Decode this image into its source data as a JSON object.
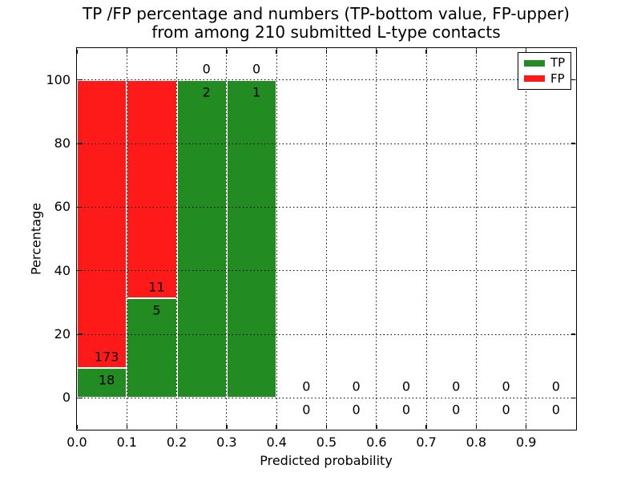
{
  "figure": {
    "title_line1": "TP /FP percentage and numbers (TP-bottom value, FP-upper)",
    "title_line2": "from among 210 submitted L-type contacts",
    "xlabel": "Predicted probability",
    "ylabel": "Percentage"
  },
  "legend": {
    "items": [
      {
        "label": "TP",
        "color": "#228b22"
      },
      {
        "label": "FP",
        "color": "#ff1a1a"
      }
    ]
  },
  "chart_data": {
    "type": "bar",
    "stacked": true,
    "title": "TP /FP percentage and numbers (TP-bottom value, FP-upper) from among 210 submitted L-type contacts",
    "xlabel": "Predicted probability",
    "ylabel": "Percentage",
    "xlim": [
      0.0,
      1.0
    ],
    "ylim": [
      -10,
      110
    ],
    "grid": true,
    "grid_style": "dotted",
    "legend_position": "upper right",
    "total_contacts": 210,
    "bin_edges": [
      0.0,
      0.1,
      0.2,
      0.3,
      0.4,
      0.5,
      0.6,
      0.7,
      0.8,
      0.9,
      1.0
    ],
    "categories": [
      "0.0-0.1",
      "0.1-0.2",
      "0.2-0.3",
      "0.3-0.4",
      "0.4-0.5",
      "0.5-0.6",
      "0.6-0.7",
      "0.7-0.8",
      "0.8-0.9",
      "0.9-1.0"
    ],
    "x_ticks": [
      "0.0",
      "0.1",
      "0.2",
      "0.3",
      "0.4",
      "0.5",
      "0.6",
      "0.7",
      "0.8",
      "0.9"
    ],
    "y_ticks": [
      0,
      20,
      40,
      60,
      80,
      100
    ],
    "series": [
      {
        "name": "TP",
        "color": "#228b22",
        "counts": [
          18,
          5,
          2,
          1,
          0,
          0,
          0,
          0,
          0,
          0
        ],
        "percent": [
          9.42,
          31.25,
          100,
          100,
          0,
          0,
          0,
          0,
          0,
          0
        ]
      },
      {
        "name": "FP",
        "color": "#ff1a1a",
        "counts": [
          173,
          11,
          0,
          0,
          0,
          0,
          0,
          0,
          0,
          0
        ],
        "percent": [
          90.58,
          68.75,
          0,
          0,
          0,
          0,
          0,
          0,
          0,
          0
        ]
      }
    ]
  }
}
